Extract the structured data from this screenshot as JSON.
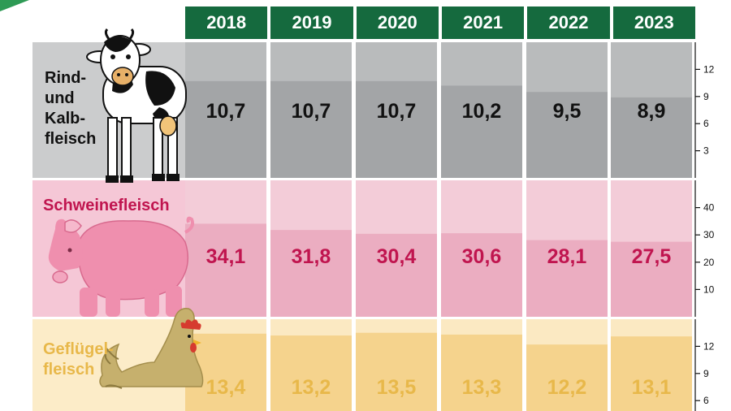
{
  "years": [
    "2018",
    "2019",
    "2020",
    "2021",
    "2022",
    "2023"
  ],
  "colors": {
    "header_green": "#156a3e",
    "corner_green": "#2e9a55",
    "beef_value_text": "#111111",
    "pork_text": "#c0154f",
    "poultry_text": "#e8b84a"
  },
  "icons": [
    "cow-icon",
    "pig-icon",
    "chicken-icon"
  ],
  "chart_data": [
    {
      "type": "bar",
      "label": "Rind- und Kalbfleisch",
      "label_lines": [
        "Rind-",
        "und",
        "Kalb-",
        "fleisch"
      ],
      "categories": [
        "2018",
        "2019",
        "2020",
        "2021",
        "2022",
        "2023"
      ],
      "values": [
        10.7,
        10.7,
        10.7,
        10.2,
        9.5,
        8.9
      ],
      "value_labels": [
        "10,7",
        "10,7",
        "10,7",
        "10,2",
        "9,5",
        "8,9"
      ],
      "ylim": [
        0,
        15
      ],
      "yticks": [
        "3",
        "6",
        "9",
        "12"
      ],
      "ytick_values": [
        3,
        6,
        9,
        12
      ]
    },
    {
      "type": "bar",
      "label": "Schweinefleisch",
      "label_lines": [
        "Schweinefleisch"
      ],
      "categories": [
        "2018",
        "2019",
        "2020",
        "2021",
        "2022",
        "2023"
      ],
      "values": [
        34.1,
        31.8,
        30.4,
        30.6,
        28.1,
        27.5
      ],
      "value_labels": [
        "34,1",
        "31,8",
        "30,4",
        "30,6",
        "28,1",
        "27,5"
      ],
      "ylim": [
        0,
        50
      ],
      "yticks": [
        "10",
        "20",
        "30",
        "40"
      ],
      "ytick_values": [
        10,
        20,
        30,
        40
      ]
    },
    {
      "type": "bar",
      "label": "Geflügelfleisch",
      "label_lines": [
        "Geflügel-",
        "fleisch"
      ],
      "categories": [
        "2018",
        "2019",
        "2020",
        "2021",
        "2022",
        "2023"
      ],
      "values": [
        13.4,
        13.2,
        13.5,
        13.3,
        12.2,
        13.1
      ],
      "value_labels": [
        "13,4",
        "13,2",
        "13,5",
        "13,3",
        "12,2",
        "13,1"
      ],
      "ylim": [
        0,
        15
      ],
      "yticks": [
        "6",
        "9",
        "12"
      ],
      "ytick_values": [
        6,
        9,
        12
      ]
    }
  ]
}
